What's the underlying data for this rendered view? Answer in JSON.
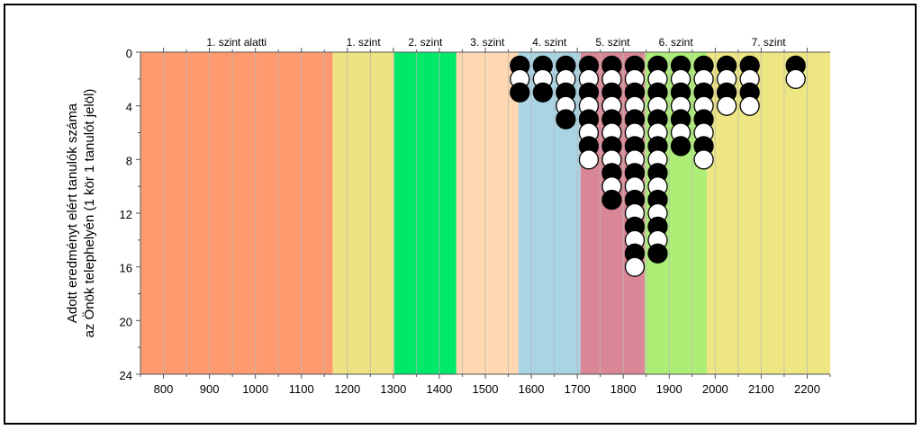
{
  "chart_data": {
    "type": "scatter",
    "title": "",
    "xlabel": "",
    "ylabel": [
      "Adott eredményt elért tanulók száma",
      "az Önök telephelyén (1 kör 1 tanulót jelöl)"
    ],
    "xlim": [
      750,
      2250
    ],
    "ylim": [
      24,
      0
    ],
    "y_inverted": true,
    "x_ticks": [
      800,
      900,
      1000,
      1100,
      1200,
      1300,
      1400,
      1500,
      1600,
      1700,
      1800,
      1900,
      2000,
      2100,
      2200
    ],
    "x_tick_labels": [
      "800",
      "900",
      "1000",
      "1100",
      "1200",
      "1300",
      "1400",
      "1500",
      "1600",
      "1700",
      "1800",
      "1900",
      "2000",
      "2100",
      "2200"
    ],
    "y_ticks": [
      0,
      4,
      8,
      12,
      16,
      20,
      24
    ],
    "y_tick_labels": [
      "0",
      "4",
      "8",
      "12",
      "16",
      "20",
      "24"
    ],
    "grid": "vertical",
    "levels": [
      {
        "label": "1. szint alatti",
        "from": 750,
        "to": 1168,
        "color": "#ff9a6f"
      },
      {
        "label": "1. szint",
        "from": 1168,
        "to": 1302,
        "color": "#ede382"
      },
      {
        "label": "2. szint",
        "from": 1302,
        "to": 1437,
        "color": "#00e86a"
      },
      {
        "label": "3. szint",
        "from": 1437,
        "to": 1572,
        "color": "#ffd7b0"
      },
      {
        "label": "4. szint",
        "from": 1572,
        "to": 1707,
        "color": "#a9d4e4"
      },
      {
        "label": "5. szint",
        "from": 1707,
        "to": 1847,
        "color": "#d98697"
      },
      {
        "label": "6. szint",
        "from": 1847,
        "to": 1982,
        "color": "#acee76"
      },
      {
        "label": "7. szint",
        "from": 1982,
        "to": 2250,
        "color": "#ede682"
      }
    ],
    "columns": [
      {
        "x": 1575,
        "count": 3
      },
      {
        "x": 1625,
        "count": 3
      },
      {
        "x": 1675,
        "count": 5
      },
      {
        "x": 1725,
        "count": 8
      },
      {
        "x": 1775,
        "count": 11
      },
      {
        "x": 1825,
        "count": 16
      },
      {
        "x": 1875,
        "count": 15
      },
      {
        "x": 1925,
        "count": 7
      },
      {
        "x": 1975,
        "count": 8
      },
      {
        "x": 2025,
        "count": 4
      },
      {
        "x": 2075,
        "count": 4
      },
      {
        "x": 2175,
        "count": 2
      }
    ],
    "marker_colors": {
      "odd": "#000000",
      "even": "#ffffff"
    }
  }
}
